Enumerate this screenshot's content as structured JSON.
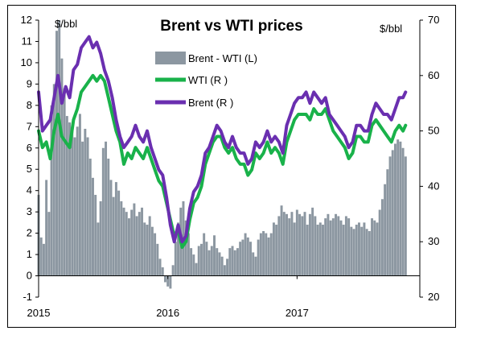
{
  "chart_data": {
    "type": "bar+line",
    "title": "Brent vs WTI prices",
    "left_unit": "$/bbl",
    "right_unit": "$/bbl",
    "left_axis": {
      "min": -1,
      "max": 12,
      "ticks": [
        "-1",
        "0",
        "1",
        "2",
        "3",
        "4",
        "5",
        "6",
        "7",
        "8",
        "9",
        "10",
        "11",
        "12"
      ]
    },
    "right_axis": {
      "min": 20,
      "max": 70,
      "ticks": [
        "20",
        "30",
        "40",
        "50",
        "60",
        "70"
      ]
    },
    "x_axis": {
      "start": 2015.0,
      "end": 2017.95,
      "ticks": [
        "2015",
        "2016",
        "2017"
      ]
    },
    "grid": false,
    "legend_position": "top-center",
    "colors": {
      "spread": "#8c97a1",
      "wti": "#19b24a",
      "brent": "#6a2fb0"
    },
    "series": [
      {
        "name": "Brent - WTI (L)",
        "axis": "left",
        "style": "bar",
        "x": [
          2015.0,
          2015.02,
          2015.04,
          2015.06,
          2015.08,
          2015.1,
          2015.12,
          2015.14,
          2015.16,
          2015.18,
          2015.2,
          2015.22,
          2015.24,
          2015.26,
          2015.28,
          2015.3,
          2015.32,
          2015.34,
          2015.36,
          2015.38,
          2015.4,
          2015.42,
          2015.44,
          2015.46,
          2015.48,
          2015.5,
          2015.52,
          2015.54,
          2015.56,
          2015.58,
          2015.6,
          2015.62,
          2015.64,
          2015.66,
          2015.68,
          2015.7,
          2015.72,
          2015.74,
          2015.76,
          2015.78,
          2015.8,
          2015.82,
          2015.84,
          2015.86,
          2015.88,
          2015.9,
          2015.92,
          2015.94,
          2015.96,
          2015.98,
          2016.0,
          2016.02,
          2016.04,
          2016.06,
          2016.08,
          2016.1,
          2016.12,
          2016.14,
          2016.16,
          2016.18,
          2016.2,
          2016.22,
          2016.24,
          2016.26,
          2016.28,
          2016.3,
          2016.32,
          2016.34,
          2016.36,
          2016.38,
          2016.4,
          2016.42,
          2016.44,
          2016.46,
          2016.48,
          2016.5,
          2016.52,
          2016.54,
          2016.56,
          2016.58,
          2016.6,
          2016.62,
          2016.64,
          2016.66,
          2016.68,
          2016.7,
          2016.72,
          2016.74,
          2016.76,
          2016.78,
          2016.8,
          2016.82,
          2016.84,
          2016.86,
          2016.88,
          2016.9,
          2016.92,
          2016.94,
          2016.96,
          2016.98,
          2017.0,
          2017.02,
          2017.04,
          2017.06,
          2017.08,
          2017.1,
          2017.12,
          2017.14,
          2017.16,
          2017.18,
          2017.2,
          2017.22,
          2017.24,
          2017.26,
          2017.28,
          2017.3,
          2017.32,
          2017.34,
          2017.36,
          2017.38,
          2017.4,
          2017.42,
          2017.44,
          2017.46,
          2017.48,
          2017.5,
          2017.52,
          2017.54,
          2017.56,
          2017.58,
          2017.6,
          2017.62,
          2017.64,
          2017.66,
          2017.68,
          2017.7,
          2017.72,
          2017.74,
          2017.76,
          2017.78,
          2017.8,
          2017.82,
          2017.84
        ],
        "values": [
          3.8,
          1.8,
          1.5,
          4.5,
          3.0,
          8.0,
          9.0,
          11.5,
          12.0,
          10.2,
          8.8,
          7.5,
          7.2,
          6.8,
          6.5,
          7.0,
          7.6,
          6.3,
          6.9,
          6.5,
          5.5,
          4.6,
          3.8,
          2.5,
          3.5,
          6.0,
          6.3,
          5.5,
          4.5,
          3.7,
          4.4,
          4.0,
          3.5,
          3.2,
          3.0,
          2.7,
          3.1,
          3.4,
          2.8,
          3.0,
          3.2,
          2.5,
          2.4,
          2.8,
          2.3,
          2.0,
          1.5,
          0.8,
          0.4,
          -0.3,
          -0.5,
          -0.6,
          0.5,
          1.6,
          2.5,
          3.2,
          3.5,
          2.6,
          2.0,
          1.3,
          1.0,
          0.6,
          1.4,
          1.5,
          2.0,
          1.6,
          1.2,
          1.4,
          1.9,
          1.3,
          1.1,
          0.9,
          0.5,
          0.8,
          1.3,
          1.4,
          1.2,
          1.3,
          1.6,
          1.7,
          2.0,
          1.8,
          1.6,
          1.1,
          0.9,
          1.7,
          2.0,
          2.1,
          2.0,
          1.8,
          2.0,
          2.5,
          2.4,
          2.8,
          3.3,
          3.0,
          2.9,
          2.7,
          3.0,
          2.5,
          3.1,
          2.9,
          2.8,
          3.0,
          2.4,
          2.9,
          3.2,
          2.8,
          2.4,
          2.5,
          2.4,
          2.7,
          2.9,
          2.6,
          2.7,
          2.9,
          2.8,
          2.6,
          2.4,
          2.8,
          2.7,
          2.3,
          2.2,
          2.4,
          2.5,
          2.3,
          2.5,
          2.2,
          2.1,
          2.7,
          2.6,
          2.5,
          3.1,
          3.6,
          4.3,
          5.0,
          5.6,
          5.9,
          6.2,
          6.4,
          6.3,
          6.0,
          5.6
        ]
      },
      {
        "name": "WTI (R )",
        "axis": "right",
        "style": "line",
        "x": [
          2015.0,
          2015.03,
          2015.06,
          2015.09,
          2015.12,
          2015.15,
          2015.18,
          2015.21,
          2015.24,
          2015.27,
          2015.3,
          2015.33,
          2015.36,
          2015.39,
          2015.42,
          2015.45,
          2015.48,
          2015.51,
          2015.54,
          2015.57,
          2015.6,
          2015.63,
          2015.66,
          2015.69,
          2015.72,
          2015.75,
          2015.78,
          2015.81,
          2015.84,
          2015.87,
          2015.9,
          2015.93,
          2015.96,
          2015.99,
          2016.02,
          2016.05,
          2016.08,
          2016.11,
          2016.14,
          2016.17,
          2016.2,
          2016.23,
          2016.26,
          2016.29,
          2016.32,
          2016.35,
          2016.38,
          2016.41,
          2016.44,
          2016.47,
          2016.5,
          2016.53,
          2016.56,
          2016.59,
          2016.62,
          2016.65,
          2016.68,
          2016.71,
          2016.74,
          2016.77,
          2016.8,
          2016.83,
          2016.86,
          2016.89,
          2016.92,
          2016.95,
          2016.98,
          2017.01,
          2017.04,
          2017.07,
          2017.1,
          2017.13,
          2017.16,
          2017.19,
          2017.22,
          2017.25,
          2017.28,
          2017.31,
          2017.34,
          2017.37,
          2017.4,
          2017.43,
          2017.46,
          2017.49,
          2017.52,
          2017.55,
          2017.58,
          2017.61,
          2017.64,
          2017.67,
          2017.7,
          2017.73,
          2017.76,
          2017.79,
          2017.82,
          2017.84
        ],
        "values": [
          50,
          47,
          48,
          45,
          50,
          53,
          49,
          48,
          47,
          52,
          54,
          57,
          58,
          59,
          60,
          59,
          60,
          59,
          56,
          53,
          50,
          48,
          44,
          46,
          45,
          47,
          46,
          45,
          47,
          45,
          43,
          41,
          40,
          37,
          34,
          31,
          32,
          29,
          30,
          34,
          37,
          38,
          40,
          44,
          46,
          48,
          49,
          49,
          47,
          46,
          47,
          45,
          44,
          44,
          42,
          43,
          46,
          45,
          46,
          48,
          46,
          47,
          46,
          44,
          48,
          50,
          52,
          53,
          53,
          53,
          52,
          54,
          53,
          53,
          54,
          52,
          50,
          49,
          48,
          47,
          45,
          46,
          49,
          49,
          48,
          48,
          51,
          52,
          51,
          50,
          49,
          48,
          50,
          51,
          50,
          51
        ]
      },
      {
        "name": "Brent (R )",
        "axis": "right",
        "style": "line",
        "x": [
          2015.0,
          2015.03,
          2015.06,
          2015.09,
          2015.12,
          2015.15,
          2015.18,
          2015.21,
          2015.24,
          2015.27,
          2015.3,
          2015.33,
          2015.36,
          2015.39,
          2015.42,
          2015.45,
          2015.48,
          2015.51,
          2015.54,
          2015.57,
          2015.6,
          2015.63,
          2015.66,
          2015.69,
          2015.72,
          2015.75,
          2015.78,
          2015.81,
          2015.84,
          2015.87,
          2015.9,
          2015.93,
          2015.96,
          2015.99,
          2016.02,
          2016.05,
          2016.08,
          2016.11,
          2016.14,
          2016.17,
          2016.2,
          2016.23,
          2016.26,
          2016.29,
          2016.32,
          2016.35,
          2016.38,
          2016.41,
          2016.44,
          2016.47,
          2016.5,
          2016.53,
          2016.56,
          2016.59,
          2016.62,
          2016.65,
          2016.68,
          2016.71,
          2016.74,
          2016.77,
          2016.8,
          2016.83,
          2016.86,
          2016.89,
          2016.92,
          2016.95,
          2016.98,
          2017.01,
          2017.04,
          2017.07,
          2017.1,
          2017.13,
          2017.16,
          2017.19,
          2017.22,
          2017.25,
          2017.28,
          2017.31,
          2017.34,
          2017.37,
          2017.4,
          2017.43,
          2017.46,
          2017.49,
          2017.52,
          2017.55,
          2017.58,
          2017.61,
          2017.64,
          2017.67,
          2017.7,
          2017.73,
          2017.76,
          2017.79,
          2017.82,
          2017.84
        ],
        "values": [
          57,
          50,
          51,
          52,
          56,
          60,
          55,
          58,
          56,
          61,
          62,
          65,
          66,
          67,
          65,
          66,
          64,
          61,
          59,
          56,
          52,
          49,
          47,
          48,
          49,
          51,
          49,
          48,
          50,
          47,
          45,
          43,
          42,
          38,
          33,
          30,
          33,
          30,
          31,
          36,
          39,
          40,
          42,
          46,
          47,
          49,
          51,
          50,
          48,
          47,
          49,
          47,
          46,
          46,
          44,
          45,
          48,
          47,
          48,
          50,
          48,
          49,
          48,
          46,
          51,
          53,
          55,
          56,
          56,
          57,
          55,
          57,
          56,
          55,
          56,
          53,
          52,
          51,
          50,
          49,
          47,
          48,
          51,
          51,
          50,
          50,
          53,
          55,
          54,
          53,
          53,
          52,
          54,
          56,
          56,
          57
        ]
      }
    ]
  }
}
